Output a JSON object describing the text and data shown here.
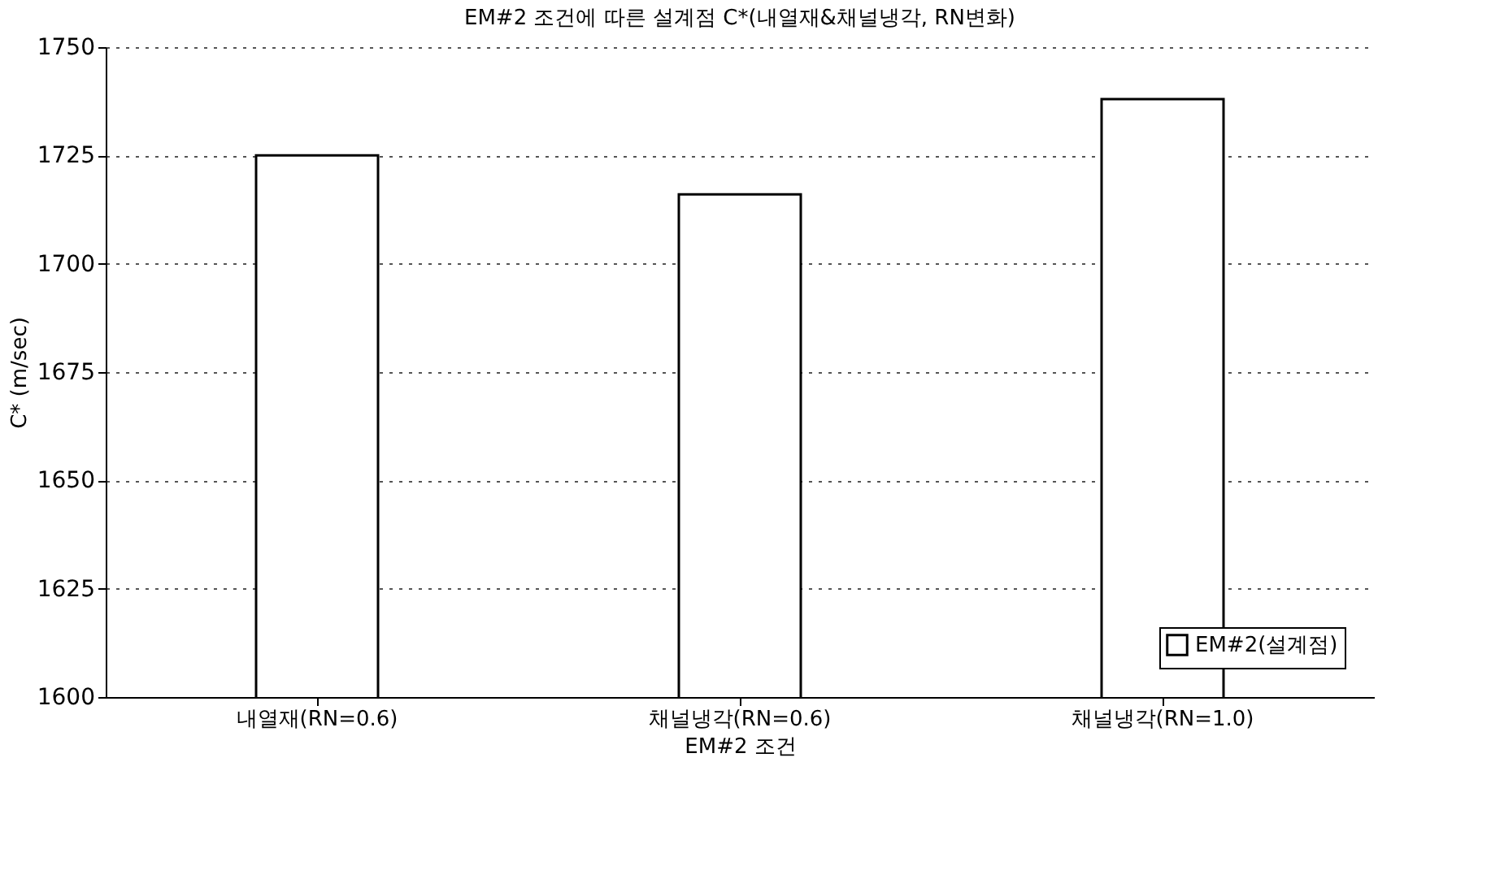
{
  "chart_data": {
    "type": "bar",
    "title": "EM#2 조건에 따른 설계점 C*(내열재&채널냉각, RN변화)",
    "xlabel": "EM#2 조건",
    "ylabel": "C* (m/sec)",
    "categories": [
      "내열재(RN=0.6)",
      "채널냉각(RN=0.6)",
      "채널냉각(RN=1.0)"
    ],
    "series": [
      {
        "name": "EM#2(설계점)",
        "color": "#ffffff",
        "values": [
          1725,
          1716,
          1738
        ]
      }
    ],
    "ylim": [
      1600,
      1750
    ],
    "yticks": [
      1600,
      1625,
      1650,
      1675,
      1700,
      1725,
      1750
    ],
    "grid": "y",
    "legend": "bottom right"
  }
}
